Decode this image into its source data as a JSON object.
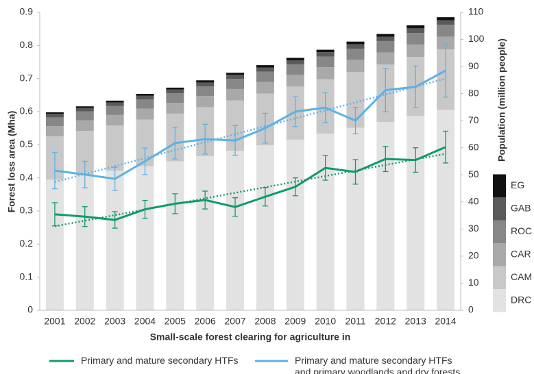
{
  "chart_data": {
    "type": "combo",
    "x_label": "Small-scale forest clearing for agriculture in",
    "y_label": "Forest loss area (Mha)",
    "y2_label": "Population (million people)",
    "categories": [
      "2001",
      "2002",
      "2003",
      "2004",
      "2005",
      "2006",
      "2007",
      "2008",
      "2009",
      "2010",
      "2011",
      "2012",
      "2013",
      "2014"
    ],
    "ylim": [
      0,
      0.9
    ],
    "yticks": [
      0,
      0.1,
      0.2,
      0.3,
      0.4,
      0.5,
      0.6,
      0.7,
      0.8,
      0.9
    ],
    "y2lim": [
      0,
      110
    ],
    "y2ticks": [
      0,
      10,
      20,
      30,
      40,
      50,
      60,
      70,
      80,
      90,
      100,
      110
    ],
    "trend": true,
    "series": [
      {
        "name": "DRC",
        "type": "bar",
        "axis": "y2",
        "color": "#e2e2e2",
        "values": [
          48.3,
          49.9,
          51.5,
          53.2,
          55.0,
          56.9,
          58.9,
          60.9,
          63.0,
          65.2,
          67.4,
          69.5,
          71.8,
          74.0
        ]
      },
      {
        "name": "CAM",
        "type": "bar",
        "axis": "y2",
        "color": "#c8c8c8",
        "values": [
          15.9,
          16.3,
          16.7,
          17.2,
          17.6,
          18.1,
          18.6,
          19.1,
          19.6,
          20.1,
          20.6,
          21.2,
          21.7,
          22.3
        ]
      },
      {
        "name": "CAR",
        "type": "bar",
        "axis": "y2",
        "color": "#a9a9a9",
        "values": [
          3.8,
          3.9,
          3.9,
          4.0,
          4.0,
          4.1,
          4.2,
          4.3,
          4.3,
          4.4,
          4.5,
          4.5,
          4.6,
          4.7
        ]
      },
      {
        "name": "ROC",
        "type": "bar",
        "axis": "y2",
        "color": "#878787",
        "values": [
          3.2,
          3.3,
          3.3,
          3.4,
          3.5,
          3.6,
          3.7,
          3.8,
          3.9,
          4.0,
          4.1,
          4.2,
          4.3,
          4.4
        ]
      },
      {
        "name": "GAB",
        "type": "bar",
        "axis": "y2",
        "color": "#5a5a5a",
        "values": [
          1.3,
          1.3,
          1.3,
          1.4,
          1.4,
          1.4,
          1.5,
          1.5,
          1.5,
          1.6,
          1.6,
          1.6,
          1.7,
          1.7
        ]
      },
      {
        "name": "EG",
        "type": "bar",
        "axis": "y2",
        "color": "#111111",
        "values": [
          0.6,
          0.6,
          0.7,
          0.7,
          0.7,
          0.8,
          0.8,
          0.9,
          0.9,
          0.9,
          1.0,
          1.0,
          1.1,
          1.1
        ]
      },
      {
        "name": "Primary and mature secondary HTFs",
        "type": "line",
        "axis": "y",
        "color": "#119a6b",
        "values": [
          0.29,
          0.283,
          0.273,
          0.305,
          0.322,
          0.333,
          0.312,
          0.343,
          0.373,
          0.43,
          0.418,
          0.457,
          0.454,
          0.493
        ],
        "errors": [
          0.035,
          0.03,
          0.025,
          0.027,
          0.03,
          0.027,
          0.028,
          0.028,
          0.027,
          0.037,
          0.037,
          0.038,
          0.037,
          0.048
        ]
      },
      {
        "name": "Primary and mature secondary HTFs\nand primary woodlands and dry forests",
        "type": "line",
        "axis": "y",
        "color": "#5cb2e4",
        "values": [
          0.422,
          0.41,
          0.397,
          0.45,
          0.505,
          0.517,
          0.513,
          0.55,
          0.6,
          0.612,
          0.573,
          0.665,
          0.675,
          0.724
        ],
        "errors": [
          0.055,
          0.04,
          0.035,
          0.04,
          0.048,
          0.045,
          0.045,
          0.045,
          0.045,
          0.045,
          0.04,
          0.065,
          0.063,
          0.08
        ]
      }
    ]
  }
}
